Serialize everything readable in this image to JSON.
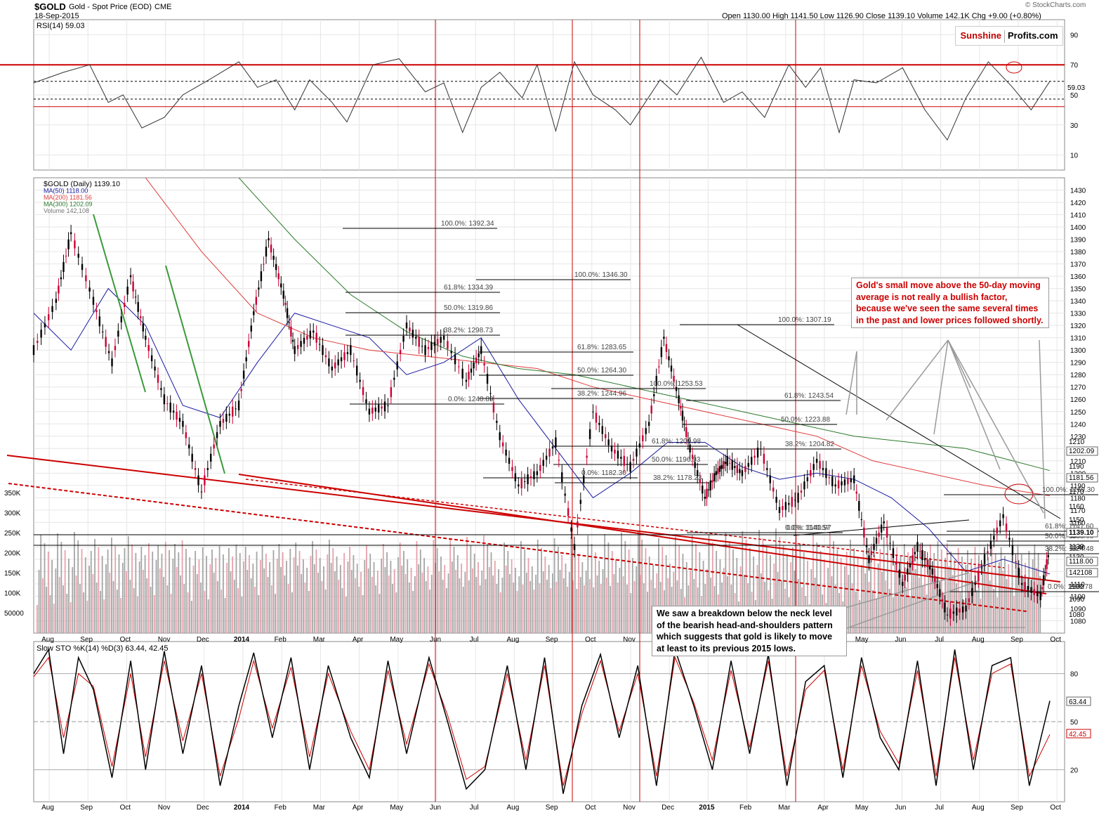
{
  "header": {
    "ticker": "$GOLD",
    "name": "Gold - Spot Price (EOD)",
    "exchange": "CME",
    "date": "18-Sep-2015",
    "source": "© StockCharts.com",
    "ohlc": "Open 1130.00  High 1141.50  Low 1126.90  Close 1139.10  Volume 142.1K  Chg +9.00 (+0.80%)",
    "logo_a": "Sunshine",
    "logo_b": "Profits.com"
  },
  "colors": {
    "price_up": "#000000",
    "price_down": "#cc0033",
    "ma50": "#1a1aa0",
    "ma200": "#e03b3b",
    "ma300": "#2a7a2a",
    "annotation": "#cc0000",
    "trend_red": "#cc0000",
    "vol_up": "#a6a6a6",
    "vol_down": "#e8a1ac"
  },
  "chart_data": [
    {
      "type": "line",
      "title": "RSI(14) 59.03",
      "ylim": [
        0,
        100
      ],
      "levels": [
        70,
        50,
        30
      ],
      "tick_labels": [
        "90",
        "70",
        "50",
        "30",
        "10"
      ],
      "current_label": "59.03",
      "series": [
        {
          "name": "RSI(14)",
          "x": [
            0,
            16,
            30,
            40,
            48,
            58,
            70,
            80,
            94,
            110,
            120,
            130,
            140,
            148,
            160,
            168,
            182,
            196,
            210,
            220,
            230,
            240,
            250,
            262,
            270,
            280,
            290,
            300,
            312,
            320,
            336,
            345,
            358,
            370,
            380,
            392,
            405,
            414,
            422,
            432,
            440,
            452,
            466,
            478,
            490,
            500,
            512,
            525,
            535,
            545
          ],
          "values": [
            58,
            65,
            70,
            45,
            50,
            28,
            35,
            50,
            60,
            72,
            55,
            60,
            40,
            60,
            45,
            32,
            70,
            74,
            52,
            58,
            25,
            55,
            65,
            48,
            70,
            26,
            72,
            50,
            40,
            30,
            60,
            50,
            75,
            45,
            52,
            35,
            70,
            55,
            68,
            25,
            60,
            58,
            68,
            40,
            20,
            48,
            72,
            55,
            40,
            59
          ]
        }
      ]
    },
    {
      "type": "candlestick",
      "title": "$GOLD (Daily) 1139.10",
      "legend": [
        "$GOLD (Daily) 1139.10",
        "MA(50) 1118.00",
        "MA(200) 1181.56",
        "MA(300) 1202.09",
        "Volume 142,108"
      ],
      "ylim": [
        1070,
        1440
      ],
      "y_ticks": [
        1430,
        1420,
        1410,
        1400,
        1390,
        1380,
        1370,
        1360,
        1350,
        1340,
        1330,
        1320,
        1310,
        1300,
        1290,
        1280,
        1270,
        1260,
        1250,
        1240,
        1230,
        1220,
        1210,
        1200,
        1190,
        1180,
        1170,
        1160,
        1150,
        1140,
        1130,
        1120,
        1110,
        1100,
        1090,
        1080
      ],
      "x_labels": [
        "Aug",
        "Sep",
        "Oct",
        "Nov",
        "Dec",
        "2014",
        "Feb",
        "Mar",
        "Apr",
        "May",
        "Jun",
        "Jul",
        "Aug",
        "Sep",
        "Oct",
        "Nov",
        "Dec",
        "2015",
        "Feb",
        "Mar",
        "Apr",
        "May",
        "Jun",
        "Jul",
        "Aug",
        "Sep",
        "Oct"
      ],
      "price_path": {
        "x": [
          0,
          12,
          20,
          32,
          42,
          52,
          60,
          70,
          80,
          90,
          100,
          110,
          118,
          126,
          134,
          140,
          150,
          160,
          170,
          180,
          190,
          200,
          210,
          220,
          232,
          240,
          250,
          260,
          270,
          280,
          290,
          300,
          310,
          320,
          330,
          338,
          346,
          352,
          360,
          366,
          372,
          380,
          390,
          400,
          410,
          420,
          430,
          440,
          448,
          456,
          466,
          474,
          482,
          490,
          500,
          510,
          520,
          530,
          540,
          545
        ],
        "values": [
          1300,
          1340,
          1395,
          1340,
          1290,
          1360,
          1310,
          1260,
          1240,
          1185,
          1240,
          1255,
          1330,
          1390,
          1345,
          1300,
          1315,
          1285,
          1300,
          1250,
          1255,
          1320,
          1300,
          1310,
          1275,
          1300,
          1230,
          1190,
          1200,
          1225,
          1140,
          1250,
          1220,
          1205,
          1240,
          1310,
          1260,
          1220,
          1180,
          1200,
          1210,
          1200,
          1220,
          1170,
          1180,
          1210,
          1190,
          1195,
          1130,
          1160,
          1110,
          1140,
          1120,
          1085,
          1090,
          1130,
          1165,
          1110,
          1100,
          1139
        ]
      },
      "ma50": {
        "x": [
          0,
          20,
          40,
          60,
          80,
          100,
          120,
          140,
          160,
          180,
          200,
          220,
          240,
          260,
          280,
          300,
          320,
          340,
          360,
          380,
          400,
          420,
          440,
          460,
          480,
          500,
          520,
          545
        ],
        "values": [
          1330,
          1300,
          1350,
          1320,
          1255,
          1245,
          1290,
          1330,
          1320,
          1310,
          1280,
          1290,
          1310,
          1260,
          1220,
          1180,
          1200,
          1225,
          1225,
          1205,
          1195,
          1200,
          1195,
          1180,
          1155,
          1120,
          1130,
          1118
        ]
      },
      "ma200": {
        "x": [
          60,
          90,
          120,
          150,
          180,
          210,
          240,
          270,
          300,
          330,
          360,
          390,
          420,
          450,
          480,
          510,
          545
        ],
        "values": [
          1440,
          1380,
          1330,
          1310,
          1300,
          1295,
          1290,
          1285,
          1270,
          1260,
          1250,
          1240,
          1230,
          1210,
          1200,
          1190,
          1181.56
        ]
      },
      "ma300": {
        "x": [
          110,
          140,
          170,
          200,
          230,
          260,
          290,
          320,
          350,
          380,
          410,
          440,
          470,
          500,
          545
        ],
        "values": [
          1440,
          1390,
          1345,
          1315,
          1295,
          1285,
          1280,
          1270,
          1260,
          1250,
          1240,
          1230,
          1225,
          1220,
          1202.09
        ]
      },
      "fib_labels": [
        "100.0%: 1392.34",
        "100.0%: 1346.30",
        "61.8%: 1334.39",
        "50.0%: 1319.86",
        "38.2%: 1298.73",
        "0.0%: 1240.89",
        "61.8%: 1283.65",
        "50.0%: 1264.30",
        "38.2%: 1244.96",
        "0.0%: 1182.30",
        "100.0%: 1253.53",
        "61.8%: 1209.98",
        "50.0%: 1196.93",
        "38.2%: 1178.23",
        "0.0%: 1140.97",
        "100.0%: 1307.19",
        "61.8%: 1243.54",
        "50.0%: 1223.88",
        "38.2%: 1204.82",
        "0.0%: 1140.57",
        "100.0%: 1169.30",
        "61.8%: 1141.60",
        "50.0%: 1133.08",
        "38.2%: 1124.48",
        "0.0%: 1100.78"
      ],
      "right_labels": [
        "1210",
        "1202.09",
        "1190",
        "1181.56",
        "1170",
        "1160",
        "1150",
        "1139.10",
        "1139",
        "1130",
        "1118.00",
        "142108",
        "1100",
        "1090",
        "1080"
      ],
      "volume_ticks": [
        "350K",
        "300K",
        "250K",
        "200K",
        "150K",
        "100K",
        "50000"
      ]
    },
    {
      "type": "line",
      "title": "Slow STO %K(14) %D(3) 63.44, 42.45",
      "ylim": [
        0,
        100
      ],
      "levels": [
        80,
        50,
        20
      ],
      "tick_labels": [
        "80",
        "50",
        "20"
      ],
      "current_labels": [
        "63.44",
        "42.45"
      ],
      "series": [
        {
          "name": "%K",
          "x": [
            0,
            8,
            16,
            24,
            32,
            42,
            52,
            60,
            70,
            80,
            90,
            100,
            110,
            118,
            128,
            138,
            148,
            158,
            170,
            180,
            190,
            200,
            212,
            222,
            232,
            242,
            254,
            264,
            274,
            284,
            294,
            304,
            314,
            324,
            334,
            344,
            354,
            364,
            374,
            384,
            394,
            404,
            414,
            424,
            434,
            444,
            454,
            464,
            474,
            484,
            494,
            504,
            514,
            524,
            534,
            545
          ],
          "values": [
            80,
            95,
            30,
            90,
            70,
            15,
            88,
            20,
            94,
            30,
            85,
            10,
            60,
            93,
            40,
            90,
            20,
            85,
            40,
            15,
            88,
            30,
            90,
            50,
            8,
            20,
            85,
            20,
            90,
            5,
            60,
            92,
            40,
            85,
            10,
            95,
            60,
            20,
            88,
            30,
            92,
            10,
            75,
            85,
            15,
            90,
            40,
            20,
            88,
            10,
            95,
            20,
            85,
            90,
            10,
            63
          ]
        },
        {
          "name": "%D",
          "x": [
            0,
            8,
            16,
            24,
            32,
            42,
            52,
            60,
            70,
            80,
            90,
            100,
            110,
            118,
            128,
            138,
            148,
            158,
            170,
            180,
            190,
            200,
            212,
            222,
            232,
            242,
            254,
            264,
            274,
            284,
            294,
            304,
            314,
            324,
            334,
            344,
            354,
            364,
            374,
            384,
            394,
            404,
            414,
            424,
            434,
            444,
            454,
            464,
            474,
            484,
            494,
            504,
            514,
            524,
            534,
            545
          ],
          "values": [
            78,
            90,
            40,
            80,
            72,
            22,
            80,
            28,
            88,
            38,
            80,
            16,
            52,
            88,
            46,
            84,
            28,
            80,
            44,
            20,
            82,
            36,
            86,
            54,
            14,
            22,
            80,
            26,
            85,
            10,
            55,
            88,
            44,
            80,
            16,
            90,
            62,
            26,
            82,
            34,
            88,
            16,
            70,
            82,
            20,
            85,
            44,
            24,
            82,
            16,
            90,
            26,
            80,
            86,
            16,
            42
          ]
        }
      ]
    }
  ],
  "annotations": {
    "top_note": "Gold's small move above the 50-day moving average is not really a bullish factor, because we've seen the same several times in the past and lower prices followed shortly.",
    "bottom_note": "We saw a breakdown below the neck level of the bearish head-and-shoulders pattern which suggests that gold is likely to move at least to its previous 2015 lows."
  }
}
